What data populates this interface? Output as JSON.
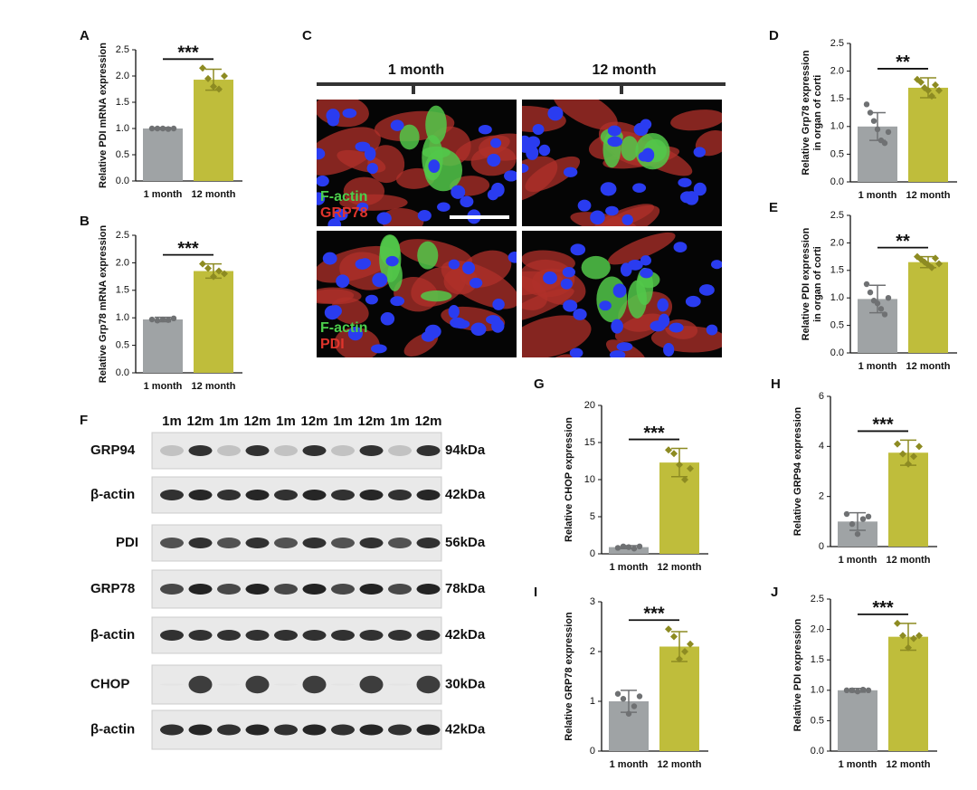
{
  "chart_data": [
    {
      "type": "bar",
      "panel": "A",
      "ylabel": [
        "Relative PDI mRNA expression"
      ],
      "categories": [
        "1 month",
        "12 month"
      ],
      "values": [
        1.0,
        1.93
      ],
      "errors": [
        0.02,
        0.2
      ],
      "points": [
        [
          1.0,
          1.0,
          1.0,
          0.99,
          1.0
        ],
        [
          2.15,
          1.95,
          1.8,
          1.75,
          2.0
        ]
      ],
      "colors": [
        "#9fa3a5",
        "#bfbd3b"
      ],
      "point_colors": [
        "#6f7173",
        "#8d8b22"
      ],
      "significance": "***",
      "ylim": [
        0,
        2.5
      ],
      "yticks": [
        {
          "value": 0,
          "label": "0.0"
        },
        0.5,
        {
          "value": 1,
          "label": "1.0"
        },
        1.5,
        {
          "value": 2,
          "label": "2.0"
        },
        2.5
      ]
    },
    {
      "type": "bar",
      "panel": "B",
      "ylabel": [
        "Relative Grp78 mRNA expression"
      ],
      "categories": [
        "1 month",
        "12 month"
      ],
      "values": [
        0.97,
        1.85
      ],
      "errors": [
        0.04,
        0.13
      ],
      "points": [
        [
          0.97,
          0.95,
          0.97,
          0.96,
          0.99
        ],
        [
          1.98,
          1.9,
          1.75,
          1.85,
          1.8
        ]
      ],
      "colors": [
        "#9fa3a5",
        "#bfbd3b"
      ],
      "point_colors": [
        "#6f7173",
        "#8d8b22"
      ],
      "significance": "***",
      "ylim": [
        0,
        2.5
      ],
      "yticks": [
        {
          "value": 0,
          "label": "0.0"
        },
        0.5,
        {
          "value": 1,
          "label": "1.0"
        },
        1.5,
        {
          "value": 2,
          "label": "2.0"
        },
        2.5
      ]
    },
    {
      "type": "bar",
      "panel": "D",
      "ylabel": [
        "Relative Grp78 expression",
        "in organ of corti"
      ],
      "categories": [
        "1 month",
        "12 month"
      ],
      "values": [
        1.0,
        1.7
      ],
      "errors": [
        0.25,
        0.18
      ],
      "points": [
        [
          1.4,
          1.25,
          1.1,
          0.95,
          0.75,
          0.7,
          0.9
        ],
        [
          1.85,
          1.8,
          1.7,
          1.65,
          1.55,
          1.75,
          1.65
        ]
      ],
      "colors": [
        "#9fa3a5",
        "#bfbd3b"
      ],
      "point_colors": [
        "#6f7173",
        "#8d8b22"
      ],
      "significance": "**",
      "ylim": [
        0,
        2.5
      ],
      "yticks": [
        {
          "value": 0,
          "label": "0.0"
        },
        0.5,
        {
          "value": 1,
          "label": "1.0"
        },
        1.5,
        {
          "value": 2,
          "label": "2.0"
        },
        2.5
      ]
    },
    {
      "type": "bar",
      "panel": "E",
      "ylabel": [
        "Relative PDI expression",
        "in organ of corti"
      ],
      "categories": [
        "1 month",
        "12 month"
      ],
      "values": [
        0.98,
        1.65
      ],
      "errors": [
        0.25,
        0.1
      ],
      "points": [
        [
          1.25,
          1.1,
          0.95,
          0.9,
          0.8,
          0.7,
          1.0
        ],
        [
          1.75,
          1.7,
          1.65,
          1.6,
          1.55,
          1.72,
          1.62
        ]
      ],
      "colors": [
        "#9fa3a5",
        "#bfbd3b"
      ],
      "point_colors": [
        "#6f7173",
        "#8d8b22"
      ],
      "significance": "**",
      "ylim": [
        0,
        2.5
      ],
      "yticks": [
        {
          "value": 0,
          "label": "0.0"
        },
        0.5,
        {
          "value": 1,
          "label": "1.0"
        },
        1.5,
        {
          "value": 2,
          "label": "2.0"
        },
        2.5
      ]
    },
    {
      "type": "bar",
      "panel": "G",
      "ylabel": [
        "Relative CHOP expression"
      ],
      "categories": [
        "1 month",
        "12 month"
      ],
      "values": [
        0.9,
        12.3
      ],
      "errors": [
        0.2,
        1.9
      ],
      "points": [
        [
          0.8,
          1.0,
          0.9,
          0.7,
          1.0
        ],
        [
          14,
          13.5,
          12,
          10,
          11.5
        ]
      ],
      "colors": [
        "#9fa3a5",
        "#bfbd3b"
      ],
      "point_colors": [
        "#6f7173",
        "#8d8b22"
      ],
      "significance": "***",
      "ylim": [
        0,
        20
      ],
      "yticks": [
        0,
        5,
        10,
        15,
        20
      ]
    },
    {
      "type": "bar",
      "panel": "H",
      "ylabel": [
        "Relative GRP94 expression"
      ],
      "categories": [
        "1 month",
        "12 month"
      ],
      "values": [
        1.0,
        3.75
      ],
      "errors": [
        0.35,
        0.5
      ],
      "points": [
        [
          1.3,
          0.9,
          0.5,
          1.1,
          1.2
        ],
        [
          4.1,
          3.7,
          3.3,
          3.6,
          4.0
        ]
      ],
      "colors": [
        "#9fa3a5",
        "#bfbd3b"
      ],
      "point_colors": [
        "#6f7173",
        "#8d8b22"
      ],
      "significance": "***",
      "ylim": [
        0,
        6
      ],
      "yticks": [
        0,
        2,
        4,
        6
      ]
    },
    {
      "type": "bar",
      "panel": "I",
      "ylabel": [
        "Relative GRP78 expression"
      ],
      "categories": [
        "1 month",
        "12 month"
      ],
      "values": [
        1.0,
        2.1
      ],
      "errors": [
        0.22,
        0.3
      ],
      "points": [
        [
          1.15,
          1.05,
          0.75,
          0.9,
          1.1
        ],
        [
          2.45,
          2.3,
          1.85,
          2.0,
          2.15
        ]
      ],
      "colors": [
        "#9fa3a5",
        "#bfbd3b"
      ],
      "point_colors": [
        "#6f7173",
        "#8d8b22"
      ],
      "significance": "***",
      "ylim": [
        0,
        3
      ],
      "yticks": [
        0,
        1,
        2,
        3
      ]
    },
    {
      "type": "bar",
      "panel": "J",
      "ylabel": [
        "Relative PDI expression"
      ],
      "categories": [
        "1 month",
        "12 month"
      ],
      "values": [
        1.0,
        1.88
      ],
      "errors": [
        0.03,
        0.22
      ],
      "points": [
        [
          1.0,
          1.0,
          0.98,
          1.01,
          1.0
        ],
        [
          2.1,
          1.9,
          1.7,
          1.85,
          1.9
        ]
      ],
      "colors": [
        "#9fa3a5",
        "#bfbd3b"
      ],
      "point_colors": [
        "#6f7173",
        "#8d8b22"
      ],
      "significance": "***",
      "ylim": [
        0,
        2.5
      ],
      "yticks": [
        {
          "value": 0,
          "label": "0.0"
        },
        0.5,
        {
          "value": 1,
          "label": "1.0"
        },
        1.5,
        {
          "value": 2,
          "label": "2.0"
        },
        2.5
      ]
    }
  ],
  "microscopy": {
    "panel": "C",
    "columns": [
      "1 month",
      "12 month"
    ],
    "rows": [
      [
        "F-actin",
        "GRP78"
      ],
      [
        "F-actin",
        "PDI"
      ]
    ]
  },
  "blot": {
    "panel": "F",
    "lanes": [
      "1m",
      "12m",
      "1m",
      "12m",
      "1m",
      "12m",
      "1m",
      "12m",
      "1m",
      "12m"
    ],
    "rows": [
      {
        "protein": "GRP94",
        "size": "94kDa"
      },
      {
        "protein": "β-actin",
        "size": "42kDa"
      },
      {
        "protein": "PDI",
        "size": "56kDa"
      },
      {
        "protein": "GRP78",
        "size": "78kDa"
      },
      {
        "protein": "β-actin",
        "size": "42kDa"
      },
      {
        "protein": "CHOP",
        "size": "30kDa"
      },
      {
        "protein": "β-actin",
        "size": "42kDa"
      }
    ]
  }
}
